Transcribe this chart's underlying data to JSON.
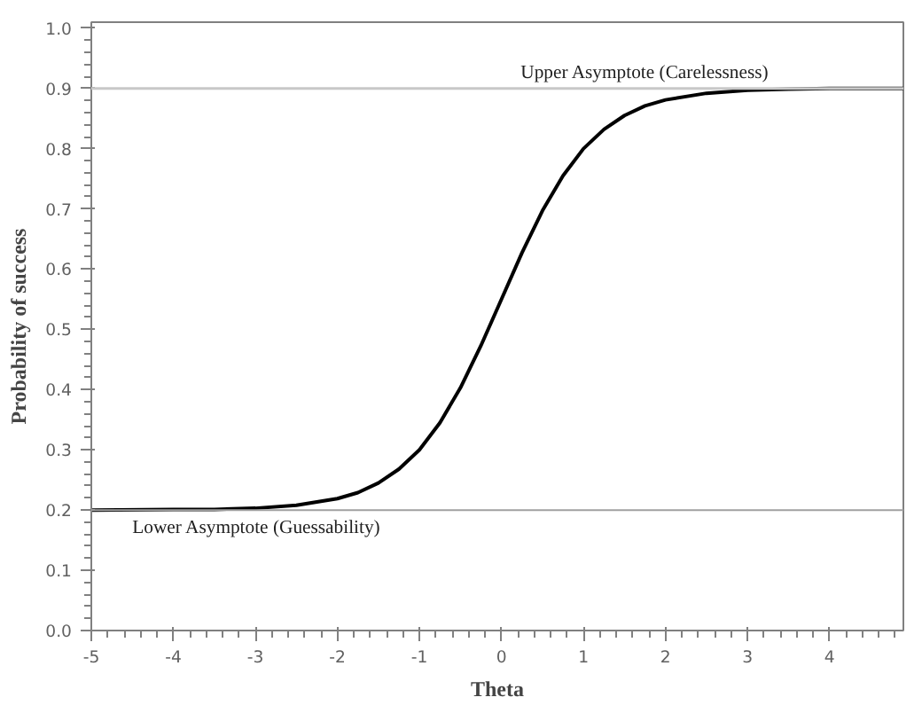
{
  "chart_data": {
    "type": "line",
    "xlabel": "Theta",
    "ylabel": "Probability of success",
    "x": [
      -5,
      -4,
      -3.5,
      -3,
      -2.5,
      -2,
      -1.75,
      -1.5,
      -1.25,
      -1,
      -0.75,
      -0.5,
      -0.25,
      0,
      0.25,
      0.5,
      0.75,
      1,
      1.25,
      1.5,
      1.75,
      2,
      2.5,
      3,
      3.5,
      4,
      4.9
    ],
    "series": [
      {
        "color": "#000000",
        "values": [
          0.2,
          0.201,
          0.201,
          0.203,
          0.208,
          0.219,
          0.229,
          0.245,
          0.268,
          0.3,
          0.345,
          0.403,
          0.473,
          0.55,
          0.627,
          0.697,
          0.755,
          0.8,
          0.832,
          0.855,
          0.871,
          0.881,
          0.892,
          0.897,
          0.899,
          0.9,
          0.9
        ]
      }
    ],
    "xlim": [
      -5,
      4.9
    ],
    "xticks": [
      -5,
      -4,
      -3,
      -2,
      -1,
      0,
      1,
      2,
      3,
      4
    ],
    "ylim": [
      0,
      1.01
    ],
    "yticks": [
      "0.0",
      0.1,
      0.2,
      0.3,
      0.4,
      0.5,
      0.6,
      0.7,
      0.8,
      0.9,
      "1.0"
    ],
    "ref_lines": [
      {
        "axis": "y",
        "value": 0.9,
        "label": "Upper Asymptote (Carelessness)",
        "color": "#c8c8c8"
      },
      {
        "axis": "y",
        "value": 0.2,
        "label": "Lower Asymptote (Guessability)",
        "color": "#a0a0a0"
      }
    ],
    "grid": false,
    "marker": "none",
    "line_style": "solid"
  }
}
